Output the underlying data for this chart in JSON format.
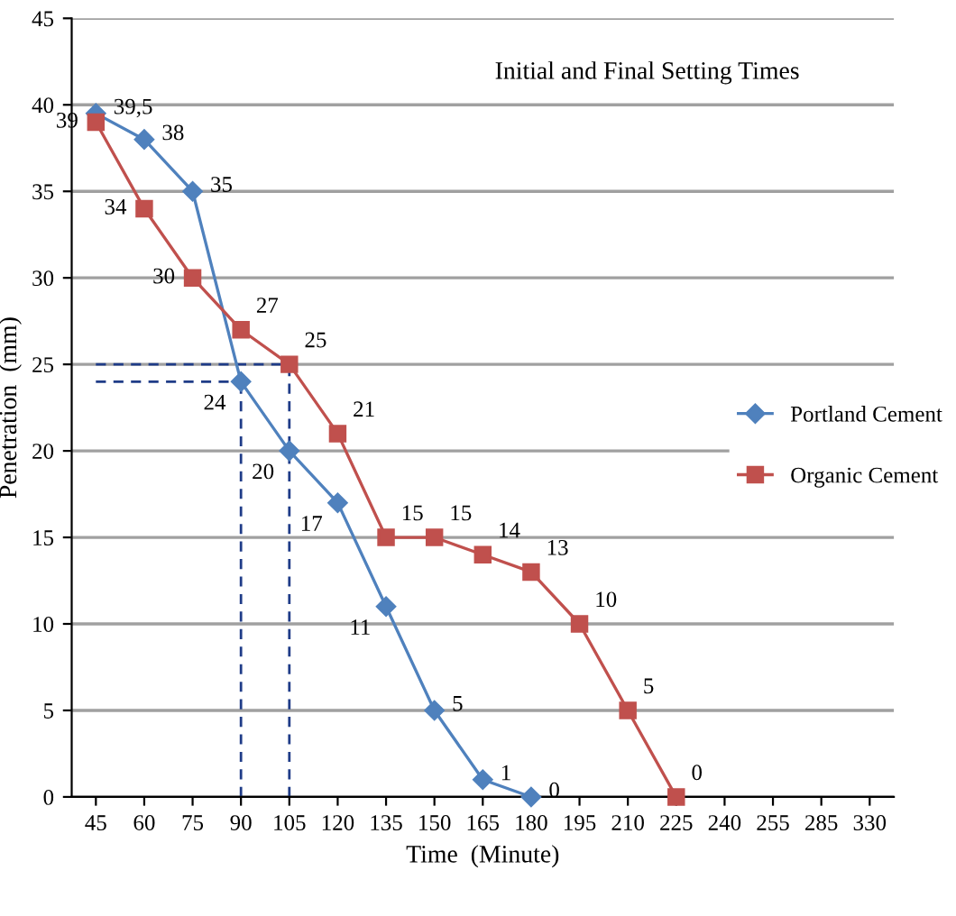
{
  "chart_data": {
    "type": "line",
    "title": "Initial and Final Setting Times",
    "xlabel": "Time  (Minute)",
    "ylabel": "Penetration  (mm)",
    "categories": [
      "45",
      "60",
      "75",
      "90",
      "105",
      "120",
      "135",
      "150",
      "165",
      "180",
      "195",
      "210",
      "225",
      "240",
      "255",
      "285",
      "330"
    ],
    "series": [
      {
        "name": "Portland Cement",
        "color": "#4f81bd",
        "marker": "diamond",
        "values": [
          39.5,
          38,
          35,
          24,
          20,
          17,
          11,
          5,
          1,
          0,
          null,
          null,
          null,
          null,
          null,
          null,
          null
        ],
        "value_labels": [
          "39,5",
          "38",
          "35",
          "24",
          "20",
          "17",
          "11",
          "5",
          "1",
          "0",
          null,
          null,
          null,
          null,
          null,
          null,
          null
        ]
      },
      {
        "name": "Organic Cement",
        "color": "#c0504d",
        "marker": "square",
        "values": [
          39,
          34,
          30,
          27,
          25,
          21,
          15,
          15,
          14,
          13,
          10,
          5,
          0,
          null,
          null,
          null,
          null
        ],
        "value_labels": [
          "39",
          "34",
          "30",
          "27",
          "25",
          "21",
          "15",
          "15",
          "14",
          "13",
          "10",
          "5",
          "0",
          null,
          null,
          null,
          null
        ]
      },
      {
        "color": "#1f3c88",
        "line_style": "dashed",
        "marker": "none",
        "x": [
          "90",
          "90"
        ],
        "values": [
          0,
          24
        ]
      },
      {
        "color": "#1f3c88",
        "line_style": "dashed",
        "marker": "none",
        "x": [
          "105",
          "105"
        ],
        "values": [
          0,
          25
        ]
      },
      {
        "color": "#1f3c88",
        "line_style": "dashed",
        "marker": "none",
        "x": [
          "45",
          "90"
        ],
        "values": [
          24,
          24
        ]
      },
      {
        "color": "#1f3c88",
        "line_style": "dashed",
        "marker": "none",
        "x": [
          "45",
          "105"
        ],
        "values": [
          25,
          25
        ]
      }
    ],
    "ylim": [
      0,
      45
    ],
    "yticks": [
      0,
      5,
      10,
      15,
      20,
      25,
      30,
      35,
      40,
      45
    ],
    "grid": "y",
    "legend": "right"
  }
}
